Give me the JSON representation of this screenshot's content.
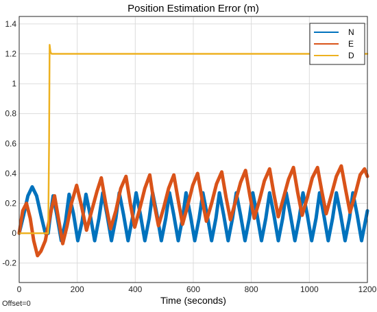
{
  "chart_data": {
    "type": "line",
    "title": "Position Estimation Error (m)",
    "xlabel": "Time (seconds)",
    "ylabel": "",
    "xlim": [
      0,
      1200
    ],
    "ylim": [
      -0.33,
      1.45
    ],
    "xticks": [
      0,
      200,
      400,
      600,
      800,
      1000,
      1200
    ],
    "yticks": [
      -0.2,
      0,
      0.2,
      0.4,
      0.6,
      0.8,
      1,
      1.2,
      1.4
    ],
    "grid": true,
    "legend_position": "top-right",
    "series": [
      {
        "name": "N",
        "color": "#0072BD",
        "points": [
          [
            0,
            0.0
          ],
          [
            15,
            0.12
          ],
          [
            30,
            0.25
          ],
          [
            45,
            0.31
          ],
          [
            60,
            0.25
          ],
          [
            75,
            0.12
          ],
          [
            90,
            0.0
          ],
          [
            100,
            0.0
          ],
          [
            105,
            0.08
          ],
          [
            117,
            0.25
          ],
          [
            130,
            0.12
          ],
          [
            145,
            -0.05
          ],
          [
            160,
            0.08
          ],
          [
            172,
            0.26
          ],
          [
            187,
            0.13
          ],
          [
            202,
            -0.05
          ],
          [
            217,
            0.08
          ],
          [
            230,
            0.26
          ],
          [
            245,
            0.12
          ],
          [
            260,
            -0.05
          ],
          [
            275,
            0.1
          ],
          [
            288,
            0.27
          ],
          [
            303,
            0.12
          ],
          [
            318,
            -0.05
          ],
          [
            333,
            0.1
          ],
          [
            345,
            0.27
          ],
          [
            360,
            0.12
          ],
          [
            375,
            -0.05
          ],
          [
            390,
            0.1
          ],
          [
            403,
            0.27
          ],
          [
            418,
            0.12
          ],
          [
            433,
            -0.05
          ],
          [
            448,
            0.1
          ],
          [
            460,
            0.27
          ],
          [
            475,
            0.12
          ],
          [
            490,
            -0.05
          ],
          [
            505,
            0.1
          ],
          [
            518,
            0.27
          ],
          [
            533,
            0.12
          ],
          [
            548,
            -0.05
          ],
          [
            563,
            0.1
          ],
          [
            575,
            0.27
          ],
          [
            590,
            0.12
          ],
          [
            605,
            -0.05
          ],
          [
            620,
            0.1
          ],
          [
            633,
            0.27
          ],
          [
            648,
            0.12
          ],
          [
            663,
            -0.05
          ],
          [
            678,
            0.1
          ],
          [
            690,
            0.27
          ],
          [
            705,
            0.12
          ],
          [
            720,
            -0.05
          ],
          [
            735,
            0.1
          ],
          [
            748,
            0.27
          ],
          [
            763,
            0.12
          ],
          [
            778,
            -0.05
          ],
          [
            793,
            0.1
          ],
          [
            805,
            0.27
          ],
          [
            820,
            0.12
          ],
          [
            835,
            -0.05
          ],
          [
            850,
            0.1
          ],
          [
            863,
            0.27
          ],
          [
            878,
            0.12
          ],
          [
            893,
            -0.05
          ],
          [
            908,
            0.1
          ],
          [
            920,
            0.27
          ],
          [
            935,
            0.12
          ],
          [
            950,
            -0.05
          ],
          [
            965,
            0.1
          ],
          [
            978,
            0.27
          ],
          [
            993,
            0.12
          ],
          [
            1008,
            -0.05
          ],
          [
            1023,
            0.1
          ],
          [
            1035,
            0.27
          ],
          [
            1050,
            0.12
          ],
          [
            1065,
            -0.05
          ],
          [
            1080,
            0.1
          ],
          [
            1093,
            0.27
          ],
          [
            1108,
            0.12
          ],
          [
            1123,
            -0.05
          ],
          [
            1138,
            0.1
          ],
          [
            1150,
            0.27
          ],
          [
            1165,
            0.12
          ],
          [
            1180,
            -0.05
          ],
          [
            1195,
            0.1
          ],
          [
            1200,
            0.15
          ]
        ]
      },
      {
        "name": "E",
        "color": "#D95319",
        "points": [
          [
            0,
            0.0
          ],
          [
            12,
            0.15
          ],
          [
            25,
            0.2
          ],
          [
            38,
            0.1
          ],
          [
            50,
            -0.05
          ],
          [
            63,
            -0.15
          ],
          [
            75,
            -0.12
          ],
          [
            90,
            -0.05
          ],
          [
            100,
            0.05
          ],
          [
            110,
            0.15
          ],
          [
            122,
            0.25
          ],
          [
            135,
            0.1
          ],
          [
            150,
            -0.07
          ],
          [
            165,
            0.05
          ],
          [
            180,
            0.2
          ],
          [
            198,
            0.32
          ],
          [
            215,
            0.18
          ],
          [
            232,
            0.02
          ],
          [
            250,
            0.15
          ],
          [
            268,
            0.28
          ],
          [
            283,
            0.37
          ],
          [
            298,
            0.2
          ],
          [
            315,
            0.03
          ],
          [
            333,
            0.15
          ],
          [
            350,
            0.3
          ],
          [
            368,
            0.38
          ],
          [
            383,
            0.2
          ],
          [
            398,
            0.04
          ],
          [
            415,
            0.16
          ],
          [
            433,
            0.3
          ],
          [
            450,
            0.39
          ],
          [
            465,
            0.2
          ],
          [
            480,
            0.05
          ],
          [
            498,
            0.17
          ],
          [
            515,
            0.3
          ],
          [
            533,
            0.39
          ],
          [
            548,
            0.22
          ],
          [
            563,
            0.06
          ],
          [
            580,
            0.18
          ],
          [
            598,
            0.32
          ],
          [
            615,
            0.4
          ],
          [
            630,
            0.23
          ],
          [
            645,
            0.08
          ],
          [
            663,
            0.2
          ],
          [
            680,
            0.33
          ],
          [
            698,
            0.41
          ],
          [
            713,
            0.24
          ],
          [
            728,
            0.09
          ],
          [
            745,
            0.21
          ],
          [
            763,
            0.34
          ],
          [
            780,
            0.42
          ],
          [
            795,
            0.25
          ],
          [
            810,
            0.1
          ],
          [
            828,
            0.22
          ],
          [
            845,
            0.35
          ],
          [
            863,
            0.43
          ],
          [
            878,
            0.26
          ],
          [
            893,
            0.11
          ],
          [
            910,
            0.23
          ],
          [
            928,
            0.36
          ],
          [
            945,
            0.44
          ],
          [
            960,
            0.27
          ],
          [
            975,
            0.12
          ],
          [
            993,
            0.24
          ],
          [
            1010,
            0.37
          ],
          [
            1028,
            0.44
          ],
          [
            1043,
            0.28
          ],
          [
            1058,
            0.13
          ],
          [
            1075,
            0.25
          ],
          [
            1093,
            0.38
          ],
          [
            1110,
            0.45
          ],
          [
            1125,
            0.29
          ],
          [
            1140,
            0.14
          ],
          [
            1158,
            0.26
          ],
          [
            1175,
            0.39
          ],
          [
            1190,
            0.43
          ],
          [
            1200,
            0.38
          ]
        ]
      },
      {
        "name": "D",
        "color": "#EDB120",
        "points": [
          [
            0,
            0.0
          ],
          [
            95,
            0.0
          ],
          [
            100,
            0.0
          ],
          [
            103,
            0.6
          ],
          [
            105,
            1.26
          ],
          [
            108,
            1.21
          ],
          [
            112,
            1.2
          ],
          [
            1200,
            1.2
          ]
        ]
      }
    ]
  },
  "footer": {
    "offset_label": "Offset=0"
  }
}
